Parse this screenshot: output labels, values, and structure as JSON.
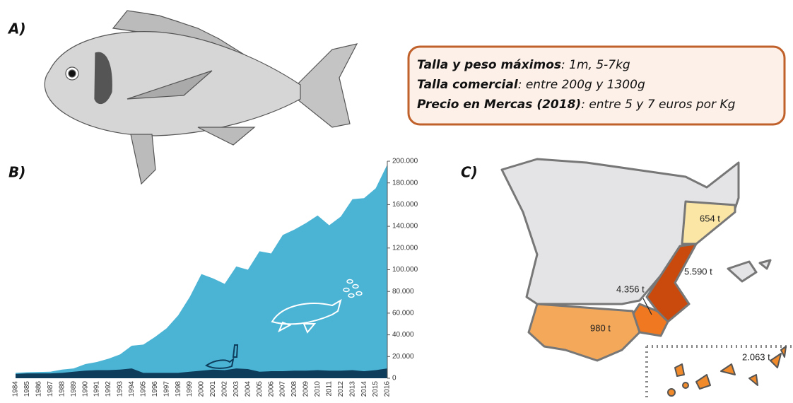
{
  "panels": [
    "A)",
    "B)",
    "C)"
  ],
  "info": [
    [
      "Talla y peso máximos",
      ": 1m, 5-7kg"
    ],
    [
      "Talla comercial",
      ": entre 200g y 1300g"
    ],
    [
      "Precio en Mercas (2018)",
      ": entre 5 y 7 euros por Kg"
    ]
  ],
  "map_labels": [
    "654 t",
    "5.590 t",
    "4.356 t",
    "980 t",
    "2.063 t"
  ],
  "chart_data": {
    "type": "area",
    "categories": [
      "1984",
      "1985",
      "1986",
      "1987",
      "1988",
      "1989",
      "1990",
      "1991",
      "1992",
      "1993",
      "1994",
      "1995",
      "1996",
      "1997",
      "1998",
      "1999",
      "2000",
      "2001",
      "2002",
      "2003",
      "2004",
      "2005",
      "2006",
      "2007",
      "2008",
      "2009",
      "2010",
      "2011",
      "2012",
      "2013",
      "2014",
      "2015",
      "2016"
    ],
    "series": [
      {
        "color": "#4bb3d4",
        "values": [
          5000,
          5500,
          5800,
          6000,
          8000,
          9000,
          13000,
          15000,
          18000,
          22000,
          30000,
          31000,
          38000,
          46000,
          58000,
          75000,
          96000,
          92000,
          87000,
          103000,
          100000,
          117000,
          115000,
          132000,
          137000,
          143000,
          150000,
          141000,
          149000,
          165000,
          166000,
          175000,
          197000
        ]
      },
      {
        "color": "#0e3d5c",
        "values": [
          4000,
          4500,
          4500,
          4500,
          5000,
          6000,
          7000,
          7500,
          7500,
          8000,
          9000,
          5000,
          5000,
          5000,
          5000,
          6000,
          7000,
          8000,
          7500,
          9000,
          8500,
          6000,
          6500,
          6500,
          7000,
          7000,
          7500,
          7000,
          7000,
          7500,
          6500,
          7500,
          9000
        ]
      }
    ],
    "ylim": [
      0,
      200000
    ],
    "yticks": [
      0,
      {
        "value": 20000,
        "label": "20.000"
      },
      {
        "value": 40000,
        "label": "40.000"
      },
      {
        "value": 60000,
        "label": "60.000"
      },
      {
        "value": 80000,
        "label": "80.000"
      },
      {
        "value": 100000,
        "label": "100.000"
      },
      {
        "value": 120000,
        "label": "120.000"
      },
      {
        "value": 140000,
        "label": "140.000"
      },
      {
        "value": 160000,
        "label": "160.000"
      },
      {
        "value": 180000,
        "label": "180.000"
      },
      {
        "value": 200000,
        "label": "200.000"
      }
    ]
  }
}
